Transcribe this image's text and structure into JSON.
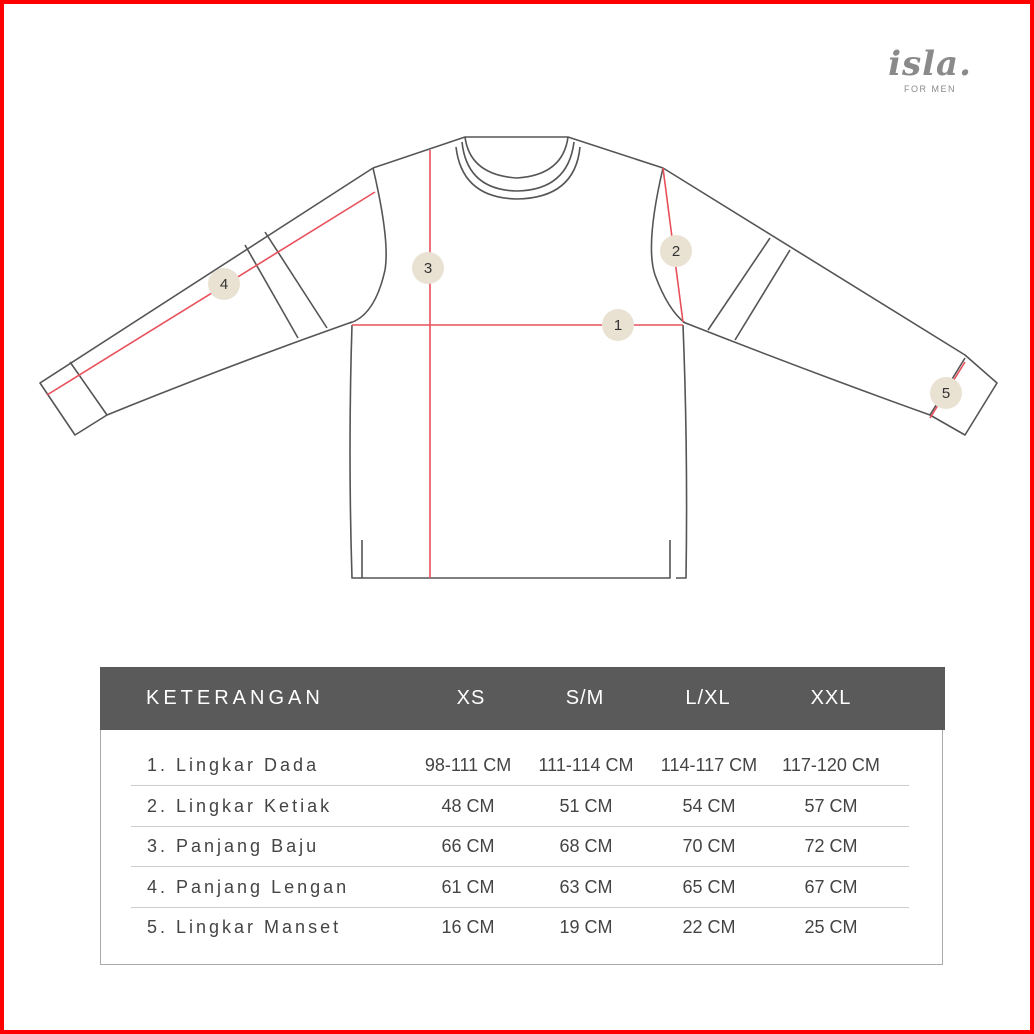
{
  "brand": {
    "logo_text": "isla.",
    "tagline": "FOR MEN"
  },
  "diagram": {
    "markers": [
      "1",
      "2",
      "3",
      "4",
      "5"
    ],
    "measure_line_color": "#e8505b",
    "marker_fill": "#e9e2d3",
    "outline_color": "#555555"
  },
  "table": {
    "header": {
      "label": "KETERANGAN",
      "sizes": [
        "XS",
        "S/M",
        "L/XL",
        "XXL"
      ]
    },
    "header_color": "#5a5a5a",
    "rows": [
      {
        "label": "1. Lingkar Dada",
        "values": [
          "98-111 CM",
          "111-114 CM",
          "114-117 CM",
          "117-120 CM"
        ]
      },
      {
        "label": "2. Lingkar Ketiak",
        "values": [
          "48 CM",
          "51 CM",
          "54 CM",
          "57 CM"
        ]
      },
      {
        "label": "3. Panjang Baju",
        "values": [
          "66 CM",
          "68 CM",
          "70 CM",
          "72 CM"
        ]
      },
      {
        "label": "4. Panjang Lengan",
        "values": [
          "61 CM",
          "63 CM",
          "65 CM",
          "67 CM"
        ]
      },
      {
        "label": "5. Lingkar Manset",
        "values": [
          "16 CM",
          "19 CM",
          "22 CM",
          "25 CM"
        ]
      }
    ]
  }
}
